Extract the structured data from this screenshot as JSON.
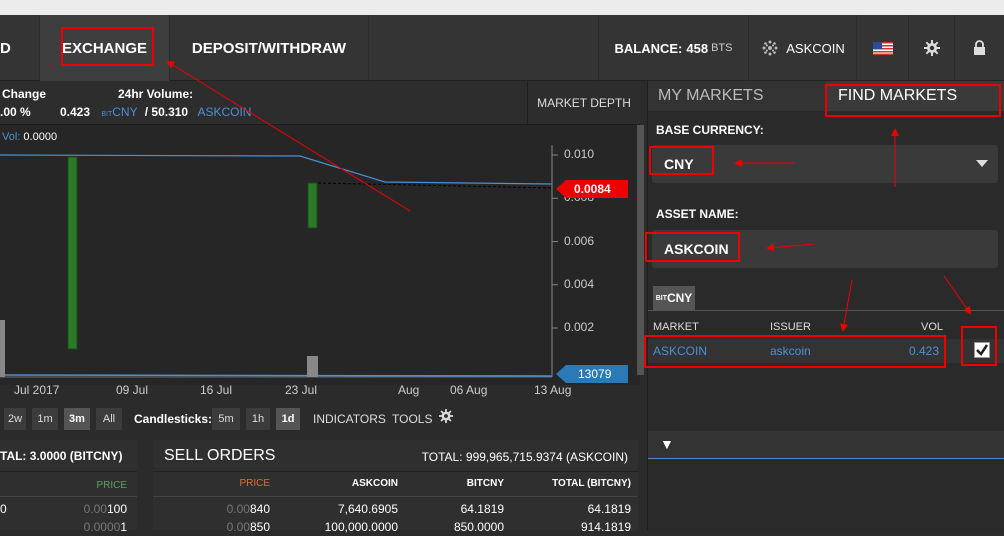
{
  "nav": {
    "cut_label": "D",
    "exchange": "EXCHANGE",
    "deposit": "DEPOSIT/WITHDRAW",
    "balance_label": "BALANCE:",
    "balance_value": "458",
    "balance_unit": "BTS",
    "account": "ASKCOIN",
    "icons": [
      "account-icon",
      "flag-us-icon",
      "gear-icon",
      "lock-icon"
    ]
  },
  "stats": {
    "change_label": "Change",
    "change_value": ".00 %",
    "volume_label": "24hr Volume:",
    "volume_value": "0.423",
    "volume_bit": "BIT",
    "volume_unit": "CNY",
    "volume_value2": "/ 50.310",
    "volume_unit2": "ASKCOIN",
    "market_depth": "MARKET DEPTH"
  },
  "chart": {
    "vol_label": "Vol:",
    "vol_value": "0.0000",
    "price_flag": "0.0084",
    "volume_flag": "13079",
    "y_ticks": [
      "0.010",
      "0.008",
      "0.006",
      "0.004",
      "0.002"
    ],
    "x_ticks": [
      "Jul 2017",
      "09 Jul",
      "16 Jul",
      "23 Jul",
      "Aug",
      "06 Aug",
      "13 Aug"
    ]
  },
  "chart_data": {
    "type": "candlestick",
    "y_ticks": [
      0.01,
      0.008,
      0.006,
      0.004,
      0.002
    ],
    "x_ticks": [
      "Jul 2017",
      "09 Jul",
      "16 Jul",
      "23 Jul",
      "Aug",
      "06 Aug",
      "13 Aug"
    ],
    "last_price": 0.0084,
    "last_volume": 13079
  },
  "controls": {
    "ranges": [
      "2w",
      "1m",
      "3m",
      "All"
    ],
    "active_range": "3m",
    "candles_label": "Candlesticks:",
    "candles": [
      "5m",
      "1h",
      "1d"
    ],
    "active_candle": "1d",
    "indicators": "INDICATORS",
    "tools": "TOOLS"
  },
  "orders": {
    "buy_total": "TAL: 3.0000 (BITCNY)",
    "buy_col": "PRICE",
    "buy_rows": [
      {
        "left": "0",
        "price_dim": "0.00",
        "price": "100"
      },
      {
        "left": "",
        "price_dim": "0.0000",
        "price": "1"
      }
    ],
    "sell_title": "SELL ORDERS",
    "sell_total": "TOTAL: 999,965,715.9374 (ASKCOIN)",
    "sell_cols": [
      "PRICE",
      "ASKCOIN",
      "BITCNY",
      "TOTAL (BITCNY)"
    ],
    "sell_rows": [
      {
        "price_dim": "0.00",
        "price": "840",
        "askcoin": "7,640.6905",
        "bitcny": "64.1819",
        "total": "64.1819"
      },
      {
        "price_dim": "0.00",
        "price": "850",
        "askcoin": "100,000.0000",
        "bitcny": "850.0000",
        "total": "914.1819"
      }
    ]
  },
  "markets": {
    "tab_my": "MY MARKETS",
    "tab_find": "FIND MARKETS",
    "base_label": "BASE CURRENCY:",
    "base_value": "CNY",
    "asset_label": "ASSET NAME:",
    "asset_value": "ASKCOIN",
    "chip_bit": "BIT",
    "chip": "CNY",
    "col_market": "MARKET",
    "col_issuer": "ISSUER",
    "col_vol": "VOL",
    "row_market": "ASKCOIN",
    "row_issuer": "askcoin",
    "row_vol": "0.423",
    "toggle": "▼"
  }
}
